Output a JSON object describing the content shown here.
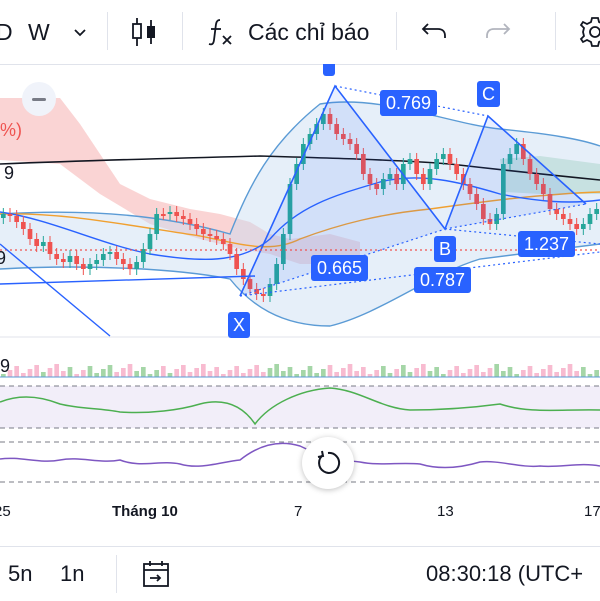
{
  "toolbar": {
    "symbol_suffix": "D",
    "interval": "W",
    "indicators_label": "Các chỉ báo",
    "icons": [
      "chevron-down-icon",
      "candles-icon",
      "function-icon",
      "undo-icon",
      "redo-icon",
      "gear-icon"
    ]
  },
  "chart": {
    "left_labels": [
      "%)",
      "9",
      "9",
      "9"
    ],
    "pattern_points": [
      "X",
      "B",
      "C"
    ],
    "ratios": [
      "0.769",
      "0.665",
      "0.787",
      "1.237"
    ],
    "colors": {
      "up": "#26a69a",
      "down": "#ef5350",
      "pattern": "#2962ff",
      "bollinger": "#5b9bd5",
      "cloud": "#f8c6c6"
    }
  },
  "xaxis": {
    "labels": [
      "25",
      "Tháng 10",
      "7",
      "13",
      "17"
    ]
  },
  "bottombar": {
    "range1": "5n",
    "range2": "1n",
    "time": "08:30:18 (UTC+"
  }
}
